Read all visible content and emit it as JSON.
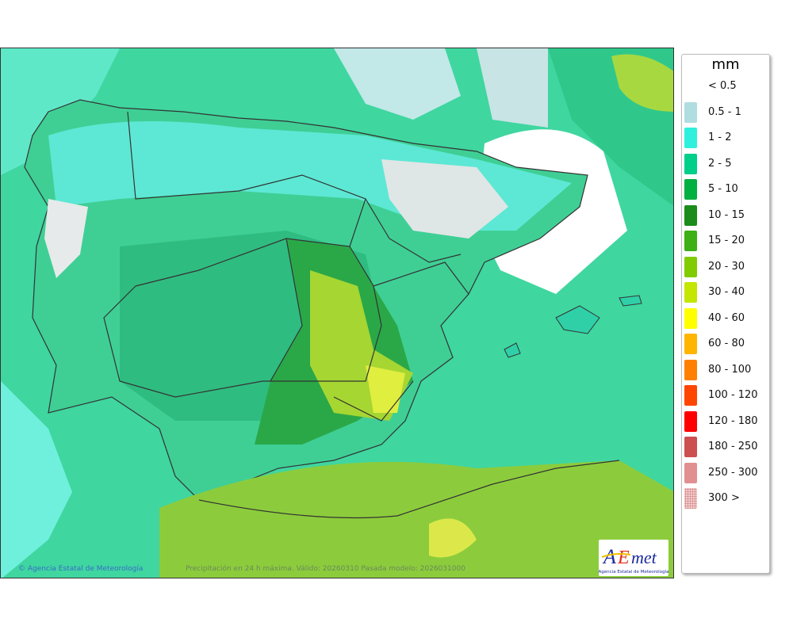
{
  "legend": {
    "unit": "mm",
    "items": [
      {
        "label": "< 0.5",
        "color": "#ffffff"
      },
      {
        "label": "0.5 - 1",
        "color": "#b0dde0"
      },
      {
        "label": "1 - 2",
        "color": "#2ef0dc"
      },
      {
        "label": "2 - 5",
        "color": "#00cf8a"
      },
      {
        "label": "5 - 10",
        "color": "#00b040"
      },
      {
        "label": "10 - 15",
        "color": "#1a8c1a"
      },
      {
        "label": "15 - 20",
        "color": "#3cb014"
      },
      {
        "label": "20 - 30",
        "color": "#80cc00"
      },
      {
        "label": "30 - 40",
        "color": "#c4e600"
      },
      {
        "label": "40 - 60",
        "color": "#ffff00"
      },
      {
        "label": "60 - 80",
        "color": "#ffb400"
      },
      {
        "label": "80 - 100",
        "color": "#ff8000"
      },
      {
        "label": "100 - 120",
        "color": "#ff4600"
      },
      {
        "label": "120 - 180",
        "color": "#ff0000"
      },
      {
        "label": "180 - 250",
        "color": "#cc5050"
      },
      {
        "label": "250 - 300",
        "color": "#e09090"
      },
      {
        "label": "300 >",
        "color": "#f2cccc"
      }
    ]
  },
  "credits": {
    "copyright": "© Agencia Estatal de Meteorología",
    "caption": "Precipitación en 24 h máxima. Válido: 20260310 Pasada modelo: 2026031000"
  },
  "logo": {
    "text": "AEmet",
    "subtitle": "Agencia Estatal de Meteorología"
  }
}
